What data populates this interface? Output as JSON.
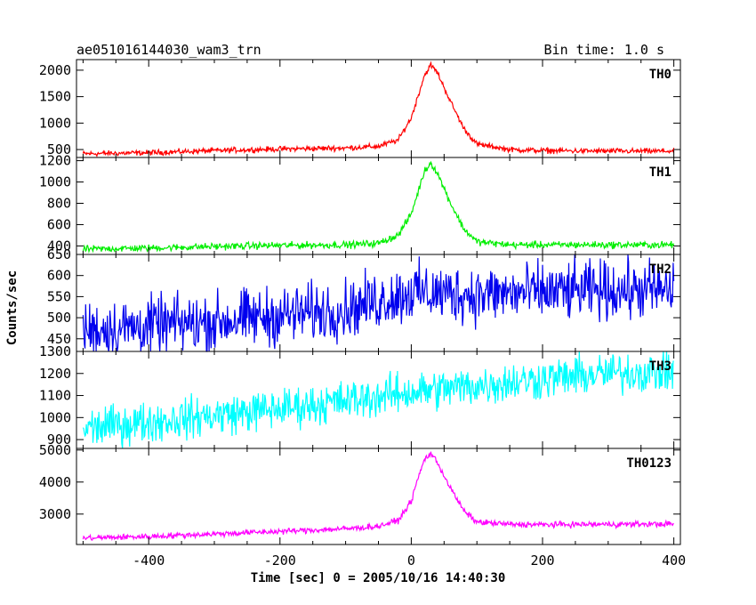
{
  "header": {
    "title": "ae051016144030_wam3_trn",
    "bin_time": "Bin time: 1.0 s"
  },
  "chart_data": {
    "type": "line",
    "xlabel": "Time [sec] 0 = 2005/10/16 14:40:30",
    "ylabel": "Counts/sec",
    "xlim": [
      -510,
      410
    ],
    "x_ticks": [
      -400,
      -200,
      0,
      200,
      400
    ],
    "panels": [
      {
        "name": "TH0",
        "color": "#ff0000",
        "ylim": [
          350,
          2200
        ],
        "y_ticks": [
          500,
          1000,
          1500,
          2000
        ],
        "x": [
          -500,
          -400,
          -300,
          -200,
          -100,
          -50,
          -20,
          0,
          10,
          20,
          30,
          40,
          60,
          80,
          100,
          150,
          200,
          300,
          400
        ],
        "values": [
          420,
          440,
          480,
          510,
          530,
          560,
          680,
          1100,
          1500,
          1900,
          2100,
          1950,
          1400,
          900,
          600,
          500,
          480,
          470,
          470
        ],
        "noise": 25
      },
      {
        "name": "TH1",
        "color": "#00ee00",
        "ylim": [
          320,
          1230
        ],
        "y_ticks": [
          400,
          600,
          800,
          1000,
          1200
        ],
        "x": [
          -500,
          -400,
          -300,
          -200,
          -100,
          -50,
          -20,
          0,
          10,
          20,
          30,
          40,
          60,
          80,
          100,
          150,
          200,
          300,
          400
        ],
        "values": [
          370,
          380,
          395,
          405,
          410,
          425,
          500,
          700,
          900,
          1100,
          1180,
          1080,
          800,
          560,
          440,
          410,
          410,
          410,
          410
        ],
        "noise": 16
      },
      {
        "name": "TH2",
        "color": "#0000ee",
        "ylim": [
          420,
          650
        ],
        "y_ticks": [
          450,
          500,
          550,
          600,
          650
        ],
        "x": [
          -500,
          -400,
          -300,
          -200,
          -100,
          0,
          100,
          200,
          300,
          400
        ],
        "values": [
          470,
          480,
          490,
          505,
          520,
          560,
          555,
          560,
          565,
          565
        ],
        "noise": 34
      },
      {
        "name": "TH3",
        "color": "#00ffff",
        "ylim": [
          860,
          1300
        ],
        "y_ticks": [
          900,
          1000,
          1100,
          1200,
          1300
        ],
        "x": [
          -500,
          -400,
          -300,
          -200,
          -100,
          0,
          100,
          200,
          300,
          400
        ],
        "values": [
          950,
          980,
          1010,
          1040,
          1075,
          1115,
          1145,
          1175,
          1200,
          1210
        ],
        "noise": 45
      },
      {
        "name": "TH0123",
        "color": "#ff00ff",
        "ylim": [
          2050,
          5050
        ],
        "y_ticks": [
          3000,
          4000,
          5000
        ],
        "x": [
          -500,
          -400,
          -300,
          -200,
          -100,
          -50,
          -20,
          0,
          10,
          20,
          30,
          40,
          60,
          80,
          100,
          150,
          200,
          300,
          400
        ],
        "values": [
          2250,
          2300,
          2380,
          2460,
          2540,
          2620,
          2800,
          3400,
          4100,
          4700,
          4900,
          4600,
          3800,
          3100,
          2750,
          2680,
          2670,
          2680,
          2690
        ],
        "noise": 45
      }
    ]
  }
}
